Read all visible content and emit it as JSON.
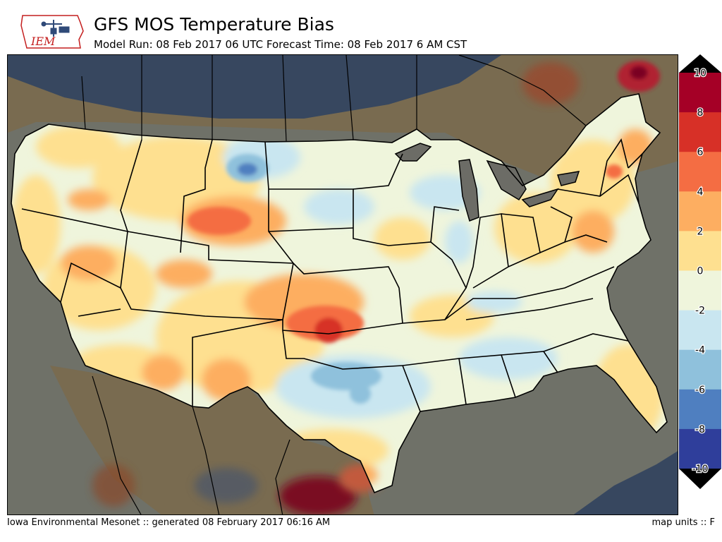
{
  "header": {
    "title": "GFS MOS Temperature Bias",
    "subtitle": "Model Run: 08 Feb 2017 06 UTC Forecast Time: 08 Feb 2017 6 AM CST",
    "logo_text": "IEM"
  },
  "footer": {
    "credit": "Iowa Environmental Mesonet :: generated 08 February 2017 06:16 AM",
    "units": "map units :: F"
  },
  "legend": {
    "ticks": [
      "10",
      "8",
      "6",
      "4",
      "2",
      "0",
      "-2",
      "-4",
      "-6",
      "-8",
      "-10"
    ],
    "colors": [
      "#a50026",
      "#d73027",
      "#f46d43",
      "#fdae61",
      "#fee090",
      "#eff5dc",
      "#c9e6f0",
      "#8fc1dc",
      "#4f7fc0",
      "#2f3e9b"
    ],
    "over_color": "#000000",
    "under_color": "#000000"
  },
  "map": {
    "region": "CONUS",
    "ocean_color": "#6f7168",
    "land_outside_color": "#7a6a4e",
    "polar_cap_color": "#37475f"
  }
}
